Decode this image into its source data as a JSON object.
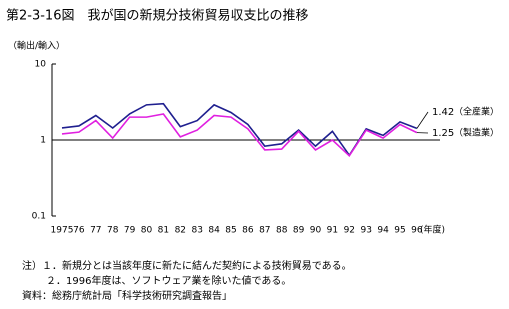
{
  "chart_data": {
    "type": "line",
    "title": "第2-3-16図　我が国の新規分技術貿易収支比の推移",
    "y_label": "（輸出/輸入）",
    "x_unit": "(年度)",
    "categories": [
      "1975",
      "76",
      "77",
      "78",
      "79",
      "80",
      "81",
      "82",
      "83",
      "84",
      "85",
      "86",
      "87",
      "88",
      "89",
      "90",
      "91",
      "92",
      "93",
      "94",
      "95",
      "96"
    ],
    "series": [
      {
        "name": "（全産業）",
        "color": "#1f1f8f",
        "values": [
          1.44,
          1.53,
          2.1,
          1.44,
          2.2,
          2.9,
          3.0,
          1.5,
          1.8,
          2.9,
          2.3,
          1.6,
          0.83,
          0.89,
          1.35,
          0.83,
          1.3,
          0.63,
          1.4,
          1.15,
          1.73,
          1.42
        ]
      },
      {
        "name": "（製造業）",
        "color": "#e020e0",
        "values": [
          1.2,
          1.27,
          1.8,
          1.06,
          2.0,
          2.0,
          2.2,
          1.1,
          1.35,
          2.1,
          2.0,
          1.4,
          0.74,
          0.76,
          1.3,
          0.74,
          1.0,
          0.62,
          1.35,
          1.06,
          1.6,
          1.25
        ]
      }
    ],
    "ylim": [
      0.1,
      10
    ],
    "yticks": [
      0.1,
      1,
      10
    ],
    "log_scale": true,
    "notes": [
      "注）１．新規分とは当該年度に新たに結んだ契約による技術貿易である。",
      "２．1996年度は、ソフトウェア業を除いた値である。",
      "資料：総務庁統計局「科学技術研究調査報告」"
    ]
  }
}
